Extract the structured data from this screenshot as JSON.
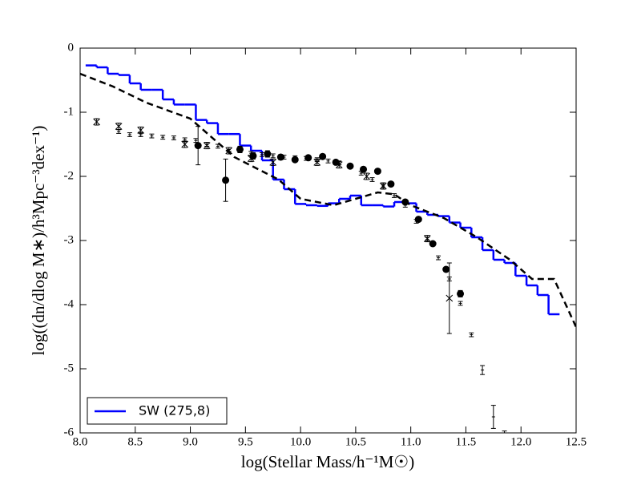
{
  "chart_data": {
    "type": "line",
    "xlabel": "log(Stellar Mass/h⁻¹M☉)",
    "ylabel": "log((dn/dlog M∗)/h³Mpc⁻³dex⁻¹)",
    "xlim": [
      8.0,
      12.5
    ],
    "ylim": [
      -6,
      0
    ],
    "xticks": [
      {
        "value": 8.0,
        "label": "8.0"
      },
      {
        "value": 8.5,
        "label": "8.5"
      },
      {
        "value": 9.0,
        "label": "9.0"
      },
      {
        "value": 9.5,
        "label": "9.5"
      },
      {
        "value": 10.0,
        "label": "10.0"
      },
      {
        "value": 10.5,
        "label": "10.5"
      },
      {
        "value": 11.0,
        "label": "11.0"
      },
      {
        "value": 11.5,
        "label": "11.5"
      },
      {
        "value": 12.0,
        "label": "12.0"
      },
      {
        "value": 12.5,
        "label": "12.5"
      }
    ],
    "yticks": [
      0,
      -1,
      -2,
      -3,
      -4,
      -5,
      -6
    ],
    "legend": "lower left",
    "series": [
      {
        "name": "SW (275,8)",
        "color": "#0000ff",
        "drawstyle": "steps-mid",
        "x": [
          8.1,
          8.2,
          8.3,
          8.4,
          8.5,
          8.6,
          8.7,
          8.8,
          8.9,
          9.0,
          9.1,
          9.2,
          9.3,
          9.4,
          9.5,
          9.6,
          9.7,
          9.8,
          9.9,
          10.0,
          10.1,
          10.2,
          10.3,
          10.4,
          10.5,
          10.6,
          10.7,
          10.8,
          10.9,
          11.0,
          11.1,
          11.2,
          11.3,
          11.4,
          11.5,
          11.6,
          11.7,
          11.8,
          11.9,
          12.0,
          12.1,
          12.2,
          12.3
        ],
        "values": [
          -0.27,
          -0.3,
          -0.4,
          -0.42,
          -0.55,
          -0.65,
          -0.65,
          -0.8,
          -0.88,
          -0.88,
          -1.12,
          -1.17,
          -1.34,
          -1.34,
          -1.52,
          -1.6,
          -1.75,
          -2.05,
          -2.2,
          -2.43,
          -2.45,
          -2.46,
          -2.42,
          -2.35,
          -2.3,
          -2.45,
          -2.45,
          -2.47,
          -2.4,
          -2.42,
          -2.55,
          -2.6,
          -2.62,
          -2.72,
          -2.8,
          -2.95,
          -3.15,
          -3.3,
          -3.35,
          -3.55,
          -3.7,
          -3.85,
          -4.15
        ]
      },
      {
        "color": "#000000",
        "linestyle": "dashed",
        "x": [
          8.0,
          8.3,
          8.6,
          9.0,
          9.4,
          9.8,
          10.0,
          10.3,
          10.5,
          10.7,
          10.85,
          11.0,
          11.3,
          11.6,
          11.9,
          12.0,
          12.1,
          12.3,
          12.5
        ],
        "values": [
          -0.4,
          -0.6,
          -0.85,
          -1.1,
          -1.7,
          -2.05,
          -2.35,
          -2.45,
          -2.35,
          -2.25,
          -2.28,
          -2.45,
          -2.65,
          -2.95,
          -3.3,
          -3.45,
          -3.6,
          -3.6,
          -4.35
        ]
      },
      {
        "color": "#000000",
        "marker": "o",
        "x": [
          9.07,
          9.32,
          9.45,
          9.57,
          9.7,
          9.82,
          9.95,
          10.07,
          10.2,
          10.32,
          10.45,
          10.57,
          10.7,
          10.82,
          10.95,
          11.07,
          11.2,
          11.32,
          11.45
        ],
        "values": [
          -1.52,
          -2.06,
          -1.58,
          -1.68,
          -1.65,
          -1.7,
          -1.74,
          -1.71,
          -1.69,
          -1.78,
          -1.84,
          -1.89,
          -1.92,
          -2.12,
          -2.4,
          -2.67,
          -3.05,
          -3.45,
          -3.83
        ],
        "errors": [
          0.3,
          0.33,
          0.05,
          0.05,
          0.05,
          0.04,
          0.03,
          0.03,
          0.03,
          0.03,
          0.03,
          0.03,
          0.03,
          0.03,
          0.03,
          0.03,
          0.03,
          0.03,
          0.05
        ]
      },
      {
        "color": "#000000",
        "marker": "x",
        "x": [
          8.15,
          8.35,
          8.55,
          8.95,
          9.15,
          9.35,
          9.55,
          9.75,
          10.15,
          10.35,
          10.6,
          10.75,
          11.15,
          11.35
        ],
        "values": [
          -1.15,
          -1.22,
          -1.28,
          -1.5,
          -1.52,
          -1.6,
          -1.72,
          -1.78,
          -1.78,
          -1.82,
          -2.0,
          -2.15,
          -2.97,
          -3.9
        ],
        "errors": [
          0.05,
          0.05,
          0.05,
          0.05,
          0.05,
          0.05,
          0.05,
          0.05,
          0.05,
          0.05,
          0.05,
          0.05,
          0.05,
          0.55
        ]
      },
      {
        "color": "#000000",
        "marker": "+",
        "x": [
          8.35,
          8.45,
          8.55,
          8.65,
          8.75,
          8.85,
          8.95,
          9.05,
          9.15,
          9.25,
          9.35,
          9.45,
          9.55,
          9.65,
          9.75,
          9.85,
          9.95,
          10.05,
          10.15,
          10.25,
          10.35,
          10.45,
          10.55,
          10.65,
          10.75,
          10.85,
          10.95,
          11.05,
          11.15,
          11.25,
          11.35,
          11.45,
          11.55,
          11.65,
          11.75,
          11.85
        ],
        "values": [
          -1.3,
          -1.35,
          -1.35,
          -1.37,
          -1.39,
          -1.4,
          -1.43,
          -1.44,
          -1.5,
          -1.53,
          -1.58,
          -1.6,
          -1.64,
          -1.66,
          -1.68,
          -1.7,
          -1.71,
          -1.72,
          -1.74,
          -1.76,
          -1.79,
          -1.84,
          -1.95,
          -2.05,
          -2.15,
          -2.3,
          -2.45,
          -2.7,
          -2.98,
          -3.27,
          -3.6,
          -3.98,
          -4.47,
          -5.02,
          -5.75,
          -6.0
        ],
        "errors": [
          0.03,
          0.03,
          0.03,
          0.03,
          0.03,
          0.03,
          0.03,
          0.03,
          0.03,
          0.03,
          0.03,
          0.03,
          0.03,
          0.03,
          0.03,
          0.03,
          0.03,
          0.03,
          0.03,
          0.03,
          0.03,
          0.03,
          0.03,
          0.03,
          0.03,
          0.03,
          0.03,
          0.03,
          0.03,
          0.03,
          0.03,
          0.03,
          0.03,
          0.07,
          0.18,
          0.03
        ]
      }
    ]
  }
}
